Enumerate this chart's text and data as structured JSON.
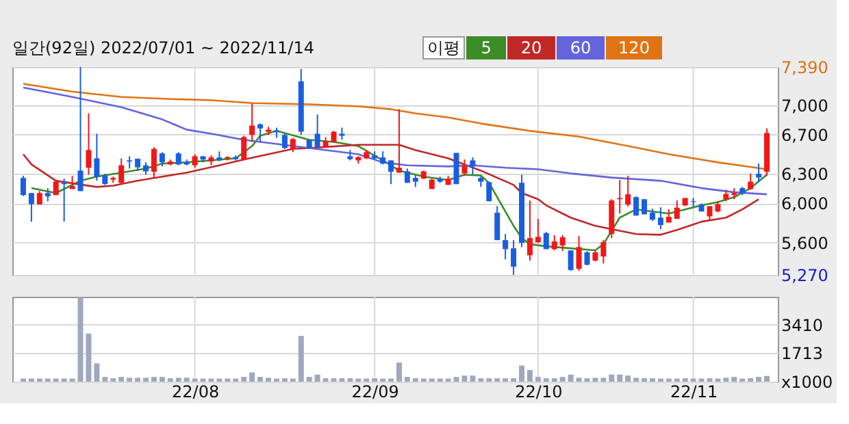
{
  "chart_data": [
    {
      "type": "candlestick",
      "title": "일간(92일) 2022/07/01 ~ 2022/11/14",
      "legend_title": "이평",
      "legend": "top",
      "grid": true,
      "tick_labels": "y",
      "ohlc": [
        [
          6259,
          6280,
          6075,
          6084
        ],
        [
          6105,
          6105,
          5813,
          5992
        ],
        [
          5988,
          6125,
          5988,
          6105
        ],
        [
          6105,
          6155,
          6021,
          6071
        ],
        [
          6084,
          6238,
          6084,
          6222
        ],
        [
          6209,
          6251,
          5813,
          6196
        ],
        [
          6146,
          6280,
          6146,
          6176
        ],
        [
          6334,
          7390,
          6125,
          6125
        ],
        [
          6363,
          6918,
          6292,
          6543
        ],
        [
          6459,
          6710,
          6230,
          6272
        ],
        [
          6284,
          6301,
          6188,
          6196
        ],
        [
          6242,
          6272,
          6209,
          6259
        ],
        [
          6209,
          6459,
          6201,
          6388
        ],
        [
          6438,
          6480,
          6355,
          6426
        ],
        [
          6455,
          6455,
          6334,
          6367
        ],
        [
          6388,
          6418,
          6292,
          6326
        ],
        [
          6322,
          6572,
          6263,
          6555
        ],
        [
          6509,
          6522,
          6376,
          6418
        ],
        [
          6397,
          6447,
          6388,
          6426
        ],
        [
          6509,
          6522,
          6388,
          6397
        ],
        [
          6418,
          6447,
          6388,
          6397
        ],
        [
          6388,
          6501,
          6363,
          6480
        ],
        [
          6480,
          6480,
          6418,
          6447
        ],
        [
          6426,
          6488,
          6388,
          6468
        ],
        [
          6468,
          6530,
          6430,
          6438
        ],
        [
          6455,
          6480,
          6438,
          6472
        ],
        [
          6472,
          6488,
          6438,
          6451
        ],
        [
          6447,
          6689,
          6438,
          6676
        ],
        [
          6697,
          7014,
          6626,
          6793
        ],
        [
          6806,
          6814,
          6626,
          6764
        ],
        [
          6730,
          6780,
          6697,
          6751
        ],
        [
          6743,
          6772,
          6668,
          6726
        ],
        [
          6697,
          6710,
          6555,
          6564
        ],
        [
          6555,
          6668,
          6522,
          6655
        ],
        [
          7244,
          7370,
          6697,
          6731
        ],
        [
          6647,
          6647,
          6555,
          6564
        ],
        [
          6710,
          6906,
          6572,
          6572
        ],
        [
          6572,
          6676,
          6572,
          6634
        ],
        [
          6626,
          6739,
          6618,
          6730
        ],
        [
          6710,
          6772,
          6647,
          6689
        ],
        [
          6480,
          6543,
          6438,
          6451
        ],
        [
          6438,
          6480,
          6405,
          6472
        ],
        [
          6459,
          6543,
          6451,
          6522
        ],
        [
          6488,
          6530,
          6447,
          6459
        ],
        [
          6468,
          6530,
          6397,
          6405
        ],
        [
          6438,
          6438,
          6196,
          6322
        ],
        [
          6313,
          6960,
          6313,
          6363
        ],
        [
          6326,
          6355,
          6209,
          6209
        ],
        [
          6259,
          6292,
          6167,
          6221
        ],
        [
          6251,
          6334,
          6251,
          6326
        ],
        [
          6146,
          6251,
          6146,
          6242
        ],
        [
          6251,
          6272,
          6209,
          6221
        ],
        [
          6188,
          6280,
          6188,
          6251
        ],
        [
          6514,
          6514,
          6196,
          6196
        ],
        [
          6305,
          6447,
          6280,
          6384
        ],
        [
          6438,
          6468,
          6292,
          6376
        ],
        [
          6259,
          6272,
          6167,
          6221
        ],
        [
          6217,
          6217,
          6021,
          6021
        ],
        [
          5904,
          5971,
          5625,
          5625
        ],
        [
          5625,
          5687,
          5429,
          5533
        ],
        [
          5541,
          5625,
          5270,
          5354
        ],
        [
          6209,
          6292,
          5554,
          5596
        ],
        [
          5470,
          6029,
          5416,
          5646
        ],
        [
          5604,
          5842,
          5596,
          5658
        ],
        [
          5696,
          5708,
          5533,
          5533
        ],
        [
          5533,
          5675,
          5521,
          5612
        ],
        [
          5571,
          5675,
          5512,
          5654
        ],
        [
          5520,
          5520,
          5312,
          5320
        ],
        [
          5333,
          5667,
          5312,
          5554
        ],
        [
          5500,
          5512,
          5366,
          5374
        ],
        [
          5416,
          5520,
          5408,
          5500
        ],
        [
          5458,
          5625,
          5387,
          5604
        ],
        [
          5687,
          6042,
          5646,
          6029
        ],
        [
          6042,
          6238,
          5896,
          6054
        ],
        [
          5988,
          6280,
          5967,
          6092
        ],
        [
          6063,
          6071,
          5875,
          5875
        ],
        [
          6042,
          6042,
          5888,
          5888
        ],
        [
          5904,
          5946,
          5821,
          5833
        ],
        [
          5854,
          5959,
          5737,
          5779
        ],
        [
          5804,
          5938,
          5804,
          5863
        ],
        [
          5842,
          6029,
          5842,
          5955
        ],
        [
          5979,
          6054,
          5971,
          6054
        ],
        [
          6021,
          6054,
          5959,
          6013
        ],
        [
          5988,
          6000,
          5917,
          5917
        ],
        [
          5867,
          5971,
          5833,
          5971
        ],
        [
          5917,
          6021,
          5909,
          5992
        ],
        [
          6042,
          6138,
          6021,
          6096
        ],
        [
          6084,
          6155,
          6042,
          6105
        ],
        [
          6155,
          6167,
          6084,
          6105
        ],
        [
          6146,
          6305,
          6138,
          6221
        ],
        [
          6301,
          6405,
          6217,
          6263
        ],
        [
          6322,
          6764,
          6280,
          6718
        ]
      ],
      "colors": [
        "#1a5ee0",
        "#1a5ee0",
        "#f01818",
        "#1a5ee0",
        "#f01818",
        "#1a5ee0",
        "#f01818",
        "#1a5ee0",
        "#f01818",
        "#1a5ee0",
        "#1a5ee0",
        "#f01818",
        "#f01818",
        "#1a5ee0",
        "#1a5ee0",
        "#1a5ee0",
        "#f01818",
        "#1a5ee0",
        "#f01818",
        "#1a5ee0",
        "#1a5ee0",
        "#f01818",
        "#1a5ee0",
        "#f01818",
        "#1a5ee0",
        "#f01818",
        "#1a5ee0",
        "#f01818",
        "#f01818",
        "#1a5ee0",
        "#f01818",
        "#1a5ee0",
        "#1a5ee0",
        "#f01818",
        "#1a5ee0",
        "#1a5ee0",
        "#1a5ee0",
        "#f01818",
        "#f01818",
        "#1a5ee0",
        "#1a5ee0",
        "#f01818",
        "#f01818",
        "#1a5ee0",
        "#1a5ee0",
        "#1a5ee0",
        "#f01818",
        "#1a5ee0",
        "#1a5ee0",
        "#f01818",
        "#f01818",
        "#1a5ee0",
        "#f01818",
        "#1a5ee0",
        "#f01818",
        "#1a5ee0",
        "#1a5ee0",
        "#1a5ee0",
        "#1a5ee0",
        "#1a5ee0",
        "#1a5ee0",
        "#1a5ee0",
        "#f01818",
        "#f01818",
        "#1a5ee0",
        "#f01818",
        "#f01818",
        "#1a5ee0",
        "#f01818",
        "#1a5ee0",
        "#f01818",
        "#f01818",
        "#f01818",
        "#f01818",
        "#f01818",
        "#1a5ee0",
        "#1a5ee0",
        "#1a5ee0",
        "#1a5ee0",
        "#f01818",
        "#f01818",
        "#f01818",
        "#1a5ee0",
        "#1a5ee0",
        "#f01818",
        "#f01818",
        "#f01818",
        "#f01818",
        "#1a5ee0",
        "#f01818",
        "#1a5ee0",
        "#f01818"
      ],
      "series": [
        {
          "name": "5",
          "type": "line",
          "color": "#3c8c28",
          "values": [
            null,
            6155,
            null,
            null,
            6105,
            null,
            null,
            6230,
            null,
            6272,
            null,
            null,
            6313,
            null,
            null,
            6355,
            null,
            6405,
            null,
            null,
            6418,
            null,
            null,
            6438,
            null,
            null,
            6459,
            null,
            6584,
            6689,
            null,
            6739,
            null,
            null,
            null,
            6647,
            null,
            null,
            6626,
            null,
            null,
            6584,
            null,
            null,
            6438,
            null,
            6334,
            null,
            null,
            6272,
            null,
            null,
            6238,
            null,
            6292,
            null,
            6284,
            6209,
            6063,
            null,
            5771,
            5646,
            5583,
            null,
            5562,
            null,
            null,
            5541,
            null,
            null,
            5521,
            5583,
            null,
            5854,
            null,
            5938,
            null,
            5917,
            null,
            5896,
            null,
            5938,
            null,
            5979,
            null,
            6013,
            null,
            6063,
            null,
            6155,
            null,
            6292
          ]
        },
        {
          "name": "20",
          "type": "line",
          "color": "#c02828",
          "values": [
            6501,
            6397,
            null,
            null,
            6230,
            null,
            null,
            null,
            null,
            6167,
            null,
            6180,
            null,
            null,
            6230,
            null,
            6259,
            null,
            null,
            null,
            6313,
            null,
            null,
            null,
            6388,
            null,
            null,
            6447,
            null,
            null,
            6501,
            null,
            null,
            6555,
            null,
            6564,
            null,
            null,
            null,
            null,
            null,
            6597,
            null,
            null,
            null,
            null,
            6597,
            null,
            6543,
            null,
            null,
            null,
            6459,
            null,
            null,
            null,
            6334,
            null,
            null,
            null,
            6188,
            6105,
            null,
            6042,
            5979,
            null,
            null,
            5854,
            null,
            null,
            5771,
            null,
            null,
            null,
            null,
            5687,
            null,
            null,
            5679,
            null,
            5729,
            null,
            null,
            5813,
            null,
            null,
            5854,
            null,
            5938,
            null,
            6042,
            null
          ]
        },
        {
          "name": "60",
          "type": "line",
          "color": "#6464dc",
          "values": [
            7181,
            null,
            null,
            null,
            null,
            null,
            7085,
            null,
            null,
            null,
            null,
            null,
            6981,
            null,
            null,
            null,
            null,
            6856,
            null,
            null,
            6751,
            null,
            null,
            6710,
            null,
            null,
            null,
            6647,
            null,
            null,
            null,
            6605,
            null,
            null,
            null,
            6564,
            null,
            null,
            null,
            null,
            null,
            6501,
            null,
            null,
            6418,
            null,
            null,
            6388,
            null,
            null,
            null,
            null,
            6376,
            null,
            null,
            6388,
            null,
            null,
            null,
            6363,
            null,
            null,
            null,
            6347,
            null,
            null,
            null,
            6305,
            null,
            null,
            null,
            null,
            6263,
            null,
            null,
            null,
            null,
            null,
            6230,
            null,
            null,
            null,
            null,
            6155,
            null,
            null,
            null,
            6113,
            null,
            null,
            null,
            6092
          ]
        },
        {
          "name": "120",
          "type": "line",
          "color": "#e07414",
          "values": [
            7219,
            null,
            null,
            null,
            null,
            null,
            7139,
            null,
            null,
            null,
            null,
            null,
            7085,
            null,
            null,
            null,
            null,
            null,
            7064,
            null,
            null,
            null,
            null,
            7052,
            null,
            null,
            null,
            null,
            7022,
            null,
            null,
            null,
            null,
            null,
            null,
            7010,
            null,
            null,
            null,
            null,
            null,
            6989,
            null,
            null,
            null,
            6960,
            null,
            null,
            6918,
            null,
            null,
            null,
            6876,
            null,
            null,
            null,
            6814,
            null,
            null,
            null,
            null,
            null,
            6739,
            null,
            null,
            null,
            null,
            null,
            6680,
            null,
            null,
            null,
            null,
            null,
            6584,
            null,
            null,
            null,
            null,
            6501,
            null,
            null,
            null,
            null,
            null,
            6418,
            null,
            null,
            null,
            null,
            null,
            6347
          ]
        }
      ],
      "ylim": [
        5270,
        7390
      ],
      "yticks": [
        {
          "value": 5270,
          "label": "5,270"
        },
        {
          "value": 5600,
          "label": "5,600"
        },
        {
          "value": 6000,
          "label": "6,000"
        },
        {
          "value": 6300,
          "label": "6,300"
        },
        {
          "value": 6700,
          "label": "6,700"
        },
        {
          "value": 7000,
          "label": "7,000"
        },
        {
          "value": 7390,
          "label": "7,390"
        }
      ]
    },
    {
      "type": "bar",
      "grid": true,
      "color": "#a0a8c0",
      "categories": [
        null,
        null,
        null,
        null,
        null,
        null,
        null,
        null,
        null,
        null,
        null,
        null,
        null,
        null,
        null,
        null,
        null,
        null,
        null,
        null,
        null,
        "22/08",
        null,
        null,
        null,
        null,
        null,
        null,
        null,
        null,
        null,
        null,
        null,
        null,
        null,
        null,
        null,
        null,
        null,
        null,
        null,
        null,
        null,
        "22/09",
        null,
        null,
        null,
        null,
        null,
        null,
        null,
        null,
        null,
        null,
        null,
        null,
        null,
        null,
        null,
        null,
        null,
        null,
        null,
        "22/10",
        null,
        null,
        null,
        null,
        null,
        null,
        null,
        null,
        null,
        null,
        null,
        null,
        null,
        null,
        null,
        null,
        null,
        null,
        "22/11",
        null,
        null,
        null,
        null,
        null,
        null,
        null,
        null,
        null
      ],
      "values": [
        180,
        180,
        180,
        180,
        180,
        180,
        180,
        5020,
        2870,
        1090,
        280,
        200,
        280,
        230,
        230,
        230,
        280,
        280,
        200,
        230,
        230,
        180,
        180,
        180,
        180,
        180,
        180,
        280,
        550,
        280,
        230,
        180,
        200,
        180,
        2730,
        280,
        420,
        200,
        200,
        200,
        200,
        180,
        180,
        200,
        180,
        180,
        1140,
        280,
        200,
        180,
        180,
        180,
        180,
        280,
        360,
        360,
        200,
        200,
        200,
        200,
        200,
        960,
        690,
        280,
        200,
        200,
        280,
        420,
        230,
        200,
        230,
        230,
        420,
        420,
        360,
        230,
        200,
        200,
        180,
        180,
        180,
        200,
        180,
        180,
        200,
        180,
        230,
        280,
        180,
        200,
        280,
        340
      ],
      "ylim": [
        0,
        5070
      ],
      "yticks": [
        {
          "value": 0,
          "label": "x1000"
        },
        1713,
        3410
      ]
    }
  ]
}
